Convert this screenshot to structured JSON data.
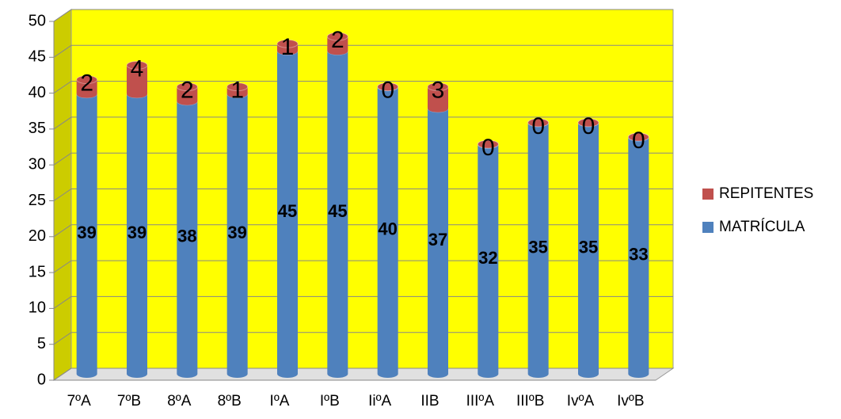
{
  "chart_data": {
    "type": "bar",
    "stacked": true,
    "categories": [
      "7ºA",
      "7ºB",
      "8ºA",
      "8ºB",
      "IºA",
      "IºB",
      "IiºA",
      "IIB",
      "IIIºA",
      "IIIºB",
      "IvºA",
      "IvºB"
    ],
    "series": [
      {
        "name": "MATRÍCULA",
        "color": "#4f81bd",
        "values": [
          39,
          39,
          38,
          39,
          45,
          45,
          40,
          37,
          32,
          35,
          35,
          33
        ]
      },
      {
        "name": "REPITENTES",
        "color": "#c0504d",
        "values": [
          2,
          4,
          2,
          1,
          1,
          2,
          0,
          3,
          0,
          0,
          0,
          0
        ]
      }
    ],
    "ylim": [
      0,
      50
    ],
    "yticks": [
      0,
      5,
      10,
      15,
      20,
      25,
      30,
      35,
      40,
      45,
      50
    ],
    "background": "#ffff00",
    "grid": true,
    "legend": "right"
  }
}
